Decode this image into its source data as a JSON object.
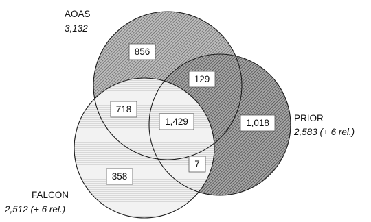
{
  "sets": {
    "aoas": {
      "name": "AOAS",
      "count": "3,132"
    },
    "prior": {
      "name": "PRIOR",
      "count": "2,583 (+ 6 rel.)"
    },
    "falcon": {
      "name": "FALCON",
      "count": "2,512 (+ 6 rel.)"
    }
  },
  "regions": {
    "aoas_only": "856",
    "aoas_prior": "129",
    "aoas_falcon": "718",
    "all_three": "1,429",
    "prior_only": "1,018",
    "falcon_prior": "7",
    "falcon_only": "358"
  },
  "colors": {
    "aoas_fill": "#8c8c8c",
    "prior_fill": "#757575",
    "falcon_fill": "#e4e4e4",
    "outline": "#1c1c1c"
  }
}
